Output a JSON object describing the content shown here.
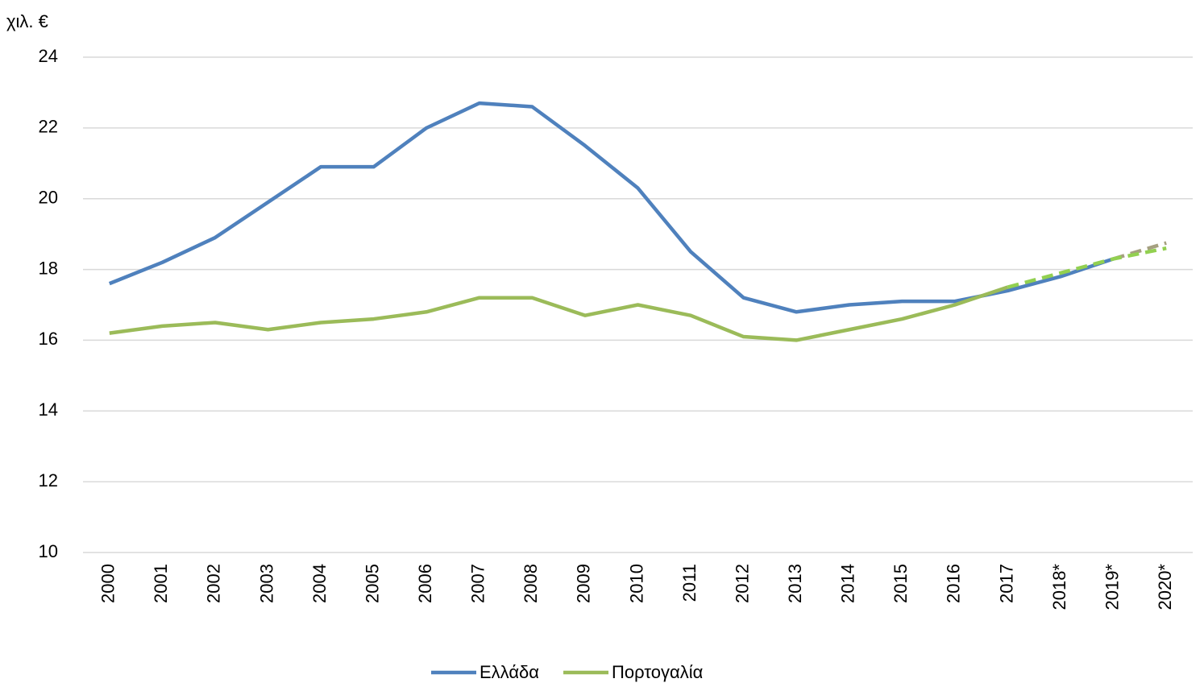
{
  "chart_data": {
    "type": "line",
    "y_unit_label": "χιλ. €",
    "categories": [
      "2000",
      "2001",
      "2002",
      "2003",
      "2004",
      "2005",
      "2006",
      "2007",
      "2008",
      "2009",
      "2010",
      "2011",
      "2012",
      "2013",
      "2014",
      "2015",
      "2016",
      "2017",
      "2018*",
      "2019*",
      "2020*"
    ],
    "series": [
      {
        "name": "Ελλάδα",
        "color": "#4f81bd",
        "forecast_from": 19,
        "forecast_color": "#a5a080",
        "values": [
          17.6,
          18.2,
          18.9,
          19.9,
          20.9,
          20.9,
          22.0,
          22.7,
          22.6,
          21.5,
          20.3,
          18.5,
          17.2,
          16.8,
          17.0,
          17.1,
          17.1,
          17.4,
          17.8,
          18.3,
          18.75
        ]
      },
      {
        "name": "Πορτογαλία",
        "color": "#9bbb59",
        "forecast_from": 17,
        "forecast_color": "#92d050",
        "values": [
          16.2,
          16.4,
          16.5,
          16.3,
          16.5,
          16.6,
          16.8,
          17.2,
          17.2,
          16.7,
          17.0,
          16.7,
          16.1,
          16.0,
          16.3,
          16.6,
          17.0,
          17.5,
          17.9,
          18.3,
          18.6
        ]
      }
    ],
    "ylim": [
      10,
      24
    ],
    "yticks": [
      10,
      12,
      14,
      16,
      18,
      20,
      22,
      24
    ],
    "grid": true,
    "legend": "bottom"
  }
}
